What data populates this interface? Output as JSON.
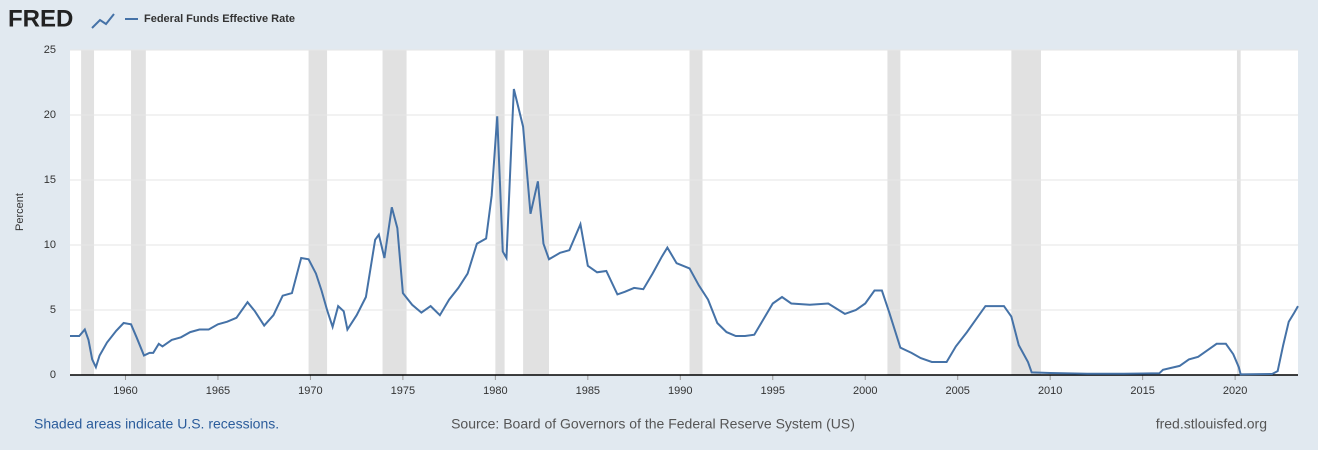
{
  "header": {
    "logo": "FRED"
  },
  "chart_data": {
    "type": "line",
    "y_label": "Percent",
    "series": [
      {
        "name": "Federal Funds Effective Rate",
        "color": "#4572a7",
        "values": [
          3.0,
          3.0,
          3.5,
          2.7,
          1.2,
          0.6,
          1.5,
          2.5,
          3.4,
          4.0,
          3.9,
          2.9,
          1.5,
          1.7,
          1.7,
          2.4,
          2.2,
          2.7,
          2.9,
          3.3,
          3.5,
          3.5,
          3.9,
          4.1,
          4.4,
          5.6,
          4.9,
          3.8,
          4.6,
          6.1,
          6.3,
          9.0,
          8.9,
          7.8,
          6.5,
          5.0,
          3.7,
          5.3,
          4.9,
          3.5,
          4.6,
          6.0,
          10.4,
          10.8,
          9.0,
          12.9,
          11.3,
          6.3,
          5.4,
          4.8,
          5.3,
          4.6,
          5.8,
          6.7,
          7.8,
          10.1,
          10.5,
          13.8,
          19.9,
          9.5,
          9.0,
          18.9,
          22.0,
          19.1,
          12.4,
          14.9,
          10.1,
          8.9,
          9.4,
          9.6,
          11.6,
          8.4,
          7.9,
          8.0,
          6.2,
          6.4,
          6.7,
          6.6,
          7.8,
          9.1,
          9.8,
          8.6,
          8.2,
          6.9,
          5.8,
          4.0,
          3.3,
          3.0,
          3.0,
          3.1,
          4.3,
          5.5,
          6.0,
          5.5,
          5.4,
          5.5,
          4.7,
          5.0,
          5.5,
          6.5,
          6.5,
          4.8,
          2.1,
          1.7,
          1.3,
          1.0,
          1.0,
          2.2,
          3.3,
          4.3,
          5.3,
          5.3,
          4.5,
          2.3,
          1.0,
          0.2,
          0.15,
          0.1,
          0.1,
          0.13,
          0.4,
          0.7,
          1.2,
          1.4,
          1.9,
          2.4,
          2.4,
          1.6,
          0.6,
          0.05,
          0.08,
          0.3,
          2.3,
          4.1,
          4.8,
          5.3
        ]
      }
    ],
    "x": [
      1957.0,
      1957.5,
      1957.8,
      1958.0,
      1958.2,
      1958.4,
      1958.6,
      1959.0,
      1959.5,
      1959.9,
      1960.3,
      1960.6,
      1961.0,
      1961.3,
      1961.5,
      1961.8,
      1962.0,
      1962.5,
      1963.0,
      1963.5,
      1964.0,
      1964.5,
      1965.0,
      1965.5,
      1966.0,
      1966.6,
      1967.0,
      1967.5,
      1968.0,
      1968.5,
      1969.0,
      1969.5,
      1969.9,
      1970.3,
      1970.6,
      1970.9,
      1971.2,
      1971.5,
      1971.8,
      1972.0,
      1972.5,
      1973.0,
      1973.5,
      1973.7,
      1974.0,
      1974.4,
      1974.7,
      1975.0,
      1975.5,
      1976.0,
      1976.5,
      1977.0,
      1977.5,
      1978.0,
      1978.5,
      1979.0,
      1979.5,
      1979.8,
      1980.1,
      1980.4,
      1980.6,
      1980.9,
      1981.0,
      1981.5,
      1981.9,
      1982.3,
      1982.6,
      1982.9,
      1983.5,
      1984.0,
      1984.6,
      1985.0,
      1985.5,
      1986.0,
      1986.6,
      1987.0,
      1987.5,
      1988.0,
      1988.5,
      1989.0,
      1989.3,
      1989.8,
      1990.5,
      1991.0,
      1991.5,
      1992.0,
      1992.5,
      1993.0,
      1993.5,
      1994.0,
      1994.5,
      1995.0,
      1995.5,
      1996.0,
      1997.0,
      1998.0,
      1998.9,
      1999.5,
      2000.0,
      2000.5,
      2000.9,
      2001.3,
      2001.9,
      2002.5,
      2003.0,
      2003.6,
      2004.4,
      2004.9,
      2005.5,
      2006.0,
      2006.5,
      2007.5,
      2007.9,
      2008.3,
      2008.8,
      2009.0,
      2010.0,
      2012.0,
      2014.0,
      2015.9,
      2016.1,
      2017.0,
      2017.5,
      2018.0,
      2018.5,
      2019.0,
      2019.5,
      2019.9,
      2020.2,
      2020.3,
      2022.0,
      2022.3,
      2022.6,
      2022.9,
      2023.2,
      2023.4
    ],
    "xlim": [
      1957.0,
      2023.4
    ],
    "xticks": [
      1960,
      1965,
      1970,
      1975,
      1980,
      1985,
      1990,
      1995,
      2000,
      2005,
      2010,
      2015,
      2020
    ],
    "ylim": [
      0,
      25
    ],
    "yticks": [
      0,
      5,
      10,
      15,
      20,
      25
    ],
    "grid": true,
    "recession_color": "#e1e1e1",
    "recessions": [
      [
        1957.6,
        1958.3
      ],
      [
        1960.3,
        1961.1
      ],
      [
        1969.9,
        1970.9
      ],
      [
        1973.9,
        1975.2
      ],
      [
        1980.0,
        1980.5
      ],
      [
        1981.5,
        1982.9
      ],
      [
        1990.5,
        1991.2
      ],
      [
        2001.2,
        2001.9
      ],
      [
        2007.9,
        2009.5
      ],
      [
        2020.1,
        2020.3
      ]
    ]
  },
  "footer": {
    "note": "Shaded areas indicate U.S. recessions.",
    "source": "Source: Board of Governors of the Federal Reserve System (US)",
    "url": "fred.stlouisfed.org"
  }
}
